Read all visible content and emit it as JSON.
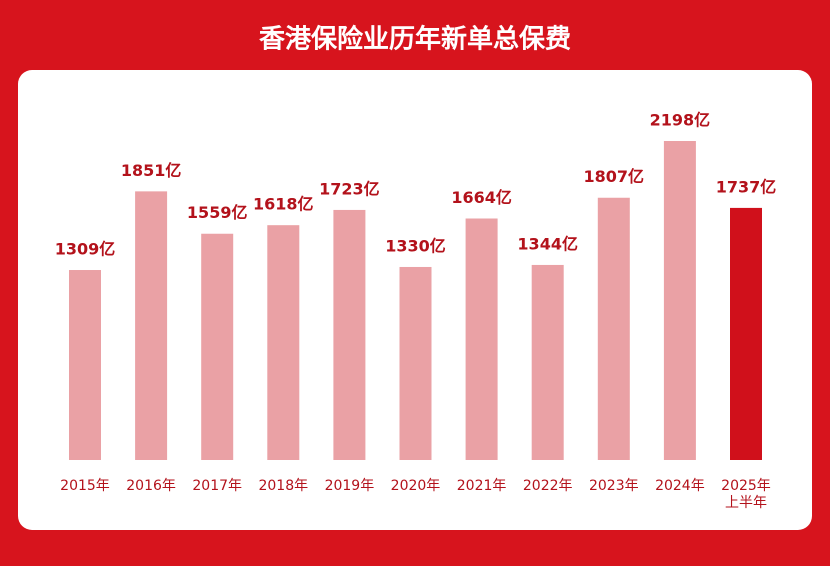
{
  "chart_data": {
    "type": "bar",
    "title": "香港保险业历年新单总保费",
    "categories": [
      "2015年",
      "2016年",
      "2017年",
      "2018年",
      "2019年",
      "2020年",
      "2021年",
      "2022年",
      "2023年",
      "2024年",
      "2025年\n上半年"
    ],
    "values": [
      1309,
      1851,
      1559,
      1618,
      1723,
      1330,
      1664,
      1344,
      1807,
      2198,
      1737
    ],
    "value_labels": [
      "1309亿",
      "1851亿",
      "1559亿",
      "1618亿",
      "1723亿",
      "1330亿",
      "1664亿",
      "1344亿",
      "1807亿",
      "2198亿",
      "1737亿"
    ],
    "colors": [
      "#eaa1a5",
      "#eaa1a5",
      "#eaa1a5",
      "#eaa1a5",
      "#eaa1a5",
      "#eaa1a5",
      "#eaa1a5",
      "#eaa1a5",
      "#eaa1a5",
      "#eaa1a5",
      "#d0101b"
    ]
  }
}
